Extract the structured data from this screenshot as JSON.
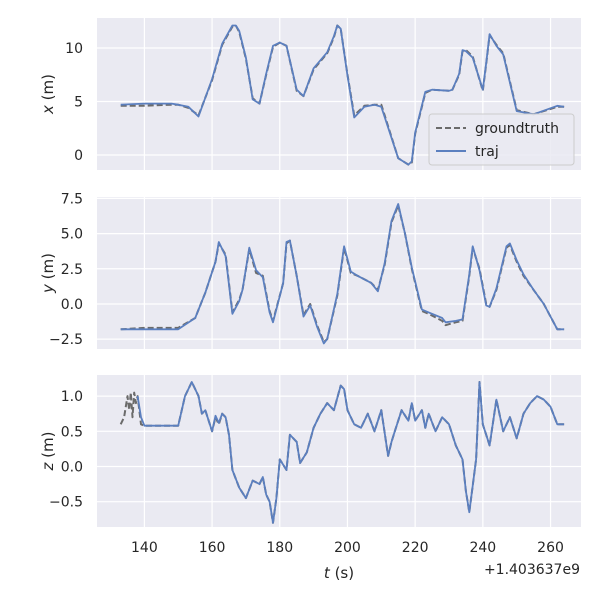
{
  "chart_data": {
    "type": "line",
    "x_offset_label": "+1.403637e9",
    "xlabel": "t (s)",
    "xlabel_var": "t",
    "xlabel_unit": " (s)",
    "xlim": [
      126,
      269
    ],
    "xticks": [
      140,
      160,
      180,
      200,
      220,
      240,
      260
    ],
    "legend": {
      "placement": "right, lower half of top panel",
      "entries": [
        "groundtruth",
        "traj"
      ]
    },
    "styles": {
      "background": "#eaeaf2",
      "grid": "#ffffff",
      "groundtruth_color": "#6b6b6b",
      "groundtruth_dash": "dashed",
      "traj_color": "#5b7fbf"
    },
    "panels": [
      {
        "ylabel": "x (m)",
        "ylabel_var": "x",
        "ylabel_unit": " (m)",
        "ylim": [
          -1.4,
          12.8
        ],
        "yticks": [
          0,
          5,
          10
        ],
        "ytick_labels": [
          "0",
          "5",
          "10"
        ],
        "series": [
          {
            "name": "groundtruth",
            "x": [
              133,
              140,
              148,
              150,
              153,
              156,
              160,
              163,
              166,
              167,
              168,
              170,
              172,
              174,
              176,
              178,
              180,
              182,
              185,
              187,
              190,
              194,
              196,
              197,
              198,
              200,
              202,
              205,
              208,
              209,
              210,
              215,
              218,
              219,
              220,
              223,
              225,
              230,
              231,
              233,
              234,
              235,
              237,
              240,
              241,
              242,
              244,
              246,
              250,
              255,
              262,
              264
            ],
            "y": [
              4.6,
              4.6,
              4.7,
              4.7,
              4.4,
              3.7,
              7.0,
              10.3,
              12.0,
              12.1,
              11.5,
              9.0,
              5.3,
              4.8,
              7.5,
              10.1,
              10.5,
              10.2,
              6.0,
              5.5,
              8.0,
              9.5,
              11.0,
              12.1,
              11.8,
              7.5,
              3.7,
              4.6,
              4.7,
              4.7,
              4.7,
              -0.3,
              -0.9,
              -0.7,
              2.0,
              5.8,
              6.1,
              6.0,
              6.1,
              7.5,
              9.7,
              9.8,
              9.2,
              6.0,
              8.5,
              11.2,
              10.3,
              9.5,
              4.2,
              3.8,
              4.5,
              4.5
            ]
          },
          {
            "name": "traj",
            "x": [
              133,
              140,
              148,
              150,
              153,
              156,
              160,
              163,
              166,
              167,
              168,
              170,
              172,
              174,
              176,
              178,
              180,
              182,
              185,
              187,
              190,
              194,
              196,
              197,
              198,
              200,
              202,
              205,
              208,
              209,
              210,
              215,
              218,
              219,
              220,
              223,
              225,
              230,
              231,
              233,
              234,
              235,
              237,
              240,
              241,
              242,
              244,
              246,
              250,
              255,
              262,
              264
            ],
            "y": [
              4.7,
              4.8,
              4.8,
              4.7,
              4.5,
              3.6,
              7.1,
              10.4,
              12.1,
              12.1,
              11.6,
              9.1,
              5.2,
              4.8,
              7.6,
              10.2,
              10.5,
              10.2,
              6.1,
              5.5,
              8.1,
              9.6,
              11.1,
              12.1,
              11.8,
              7.4,
              3.5,
              4.5,
              4.7,
              4.6,
              4.5,
              -0.3,
              -0.9,
              -0.6,
              2.1,
              5.9,
              6.1,
              6.0,
              6.1,
              7.6,
              9.8,
              9.7,
              9.1,
              6.1,
              8.6,
              11.3,
              10.2,
              9.4,
              4.1,
              3.8,
              4.6,
              4.5
            ]
          }
        ]
      },
      {
        "ylabel": "y (m)",
        "ylabel_var": "y",
        "ylabel_unit": " (m)",
        "ylim": [
          -3.2,
          7.6
        ],
        "yticks": [
          -2.5,
          0.0,
          2.5,
          5.0,
          7.5
        ],
        "ytick_labels": [
          "−2.5",
          "0.0",
          "2.5",
          "5.0",
          "7.5"
        ],
        "series": [
          {
            "name": "groundtruth",
            "x": [
              133,
              140,
              150,
              155,
              158,
              161,
              162,
              164,
              166,
              168,
              169,
              171,
              173,
              175,
              177,
              178,
              181,
              182,
              183,
              185,
              187,
              189,
              191,
              193,
              194,
              197,
              199,
              201,
              203,
              207,
              209,
              211,
              213,
              215,
              217,
              219,
              222,
              224,
              228,
              229,
              232,
              234,
              236,
              237,
              239,
              241,
              242,
              244,
              247,
              248,
              250,
              252,
              255,
              258,
              262,
              264
            ],
            "y": [
              -1.8,
              -1.7,
              -1.7,
              -1.0,
              0.8,
              3.0,
              4.3,
              3.5,
              -0.6,
              0.3,
              1.0,
              3.9,
              2.2,
              2.0,
              -0.5,
              -1.2,
              1.5,
              4.3,
              4.5,
              2.0,
              -0.8,
              0.0,
              -1.5,
              -2.7,
              -2.5,
              0.6,
              4.0,
              2.2,
              2.0,
              1.5,
              1.0,
              2.8,
              5.8,
              7.0,
              5.0,
              2.5,
              -0.5,
              -0.7,
              -1.2,
              -1.5,
              -1.3,
              -1.2,
              2.0,
              4.0,
              2.5,
              0.0,
              -0.2,
              1.0,
              4.0,
              4.2,
              3.0,
              2.0,
              1.0,
              0.0,
              -1.8,
              -1.8
            ]
          },
          {
            "name": "traj",
            "x": [
              133,
              140,
              150,
              155,
              158,
              161,
              162,
              164,
              166,
              168,
              169,
              171,
              173,
              175,
              177,
              178,
              181,
              182,
              183,
              185,
              187,
              189,
              191,
              193,
              194,
              197,
              199,
              201,
              203,
              207,
              209,
              211,
              213,
              215,
              217,
              219,
              222,
              224,
              228,
              229,
              232,
              234,
              236,
              237,
              239,
              241,
              242,
              244,
              247,
              248,
              250,
              252,
              255,
              258,
              262,
              264
            ],
            "y": [
              -1.8,
              -1.8,
              -1.8,
              -1.0,
              0.8,
              3.0,
              4.4,
              3.4,
              -0.7,
              0.2,
              1.0,
              4.0,
              2.4,
              1.9,
              -0.6,
              -1.3,
              1.5,
              4.4,
              4.5,
              2.0,
              -0.9,
              -0.1,
              -1.6,
              -2.8,
              -2.5,
              0.7,
              4.1,
              2.3,
              2.0,
              1.5,
              0.9,
              2.9,
              5.9,
              7.1,
              5.0,
              2.6,
              -0.4,
              -0.6,
              -1.0,
              -1.3,
              -1.2,
              -1.1,
              2.1,
              4.1,
              2.4,
              -0.1,
              -0.2,
              1.1,
              4.1,
              4.3,
              3.1,
              2.1,
              1.0,
              0.0,
              -1.8,
              -1.8
            ]
          }
        ]
      },
      {
        "ylabel": "z (m)",
        "ylabel_var": "z",
        "ylabel_unit": " (m)",
        "ylim": [
          -0.86,
          1.3
        ],
        "yticks": [
          -0.5,
          0.0,
          0.5,
          1.0
        ],
        "ytick_labels": [
          "−0.5",
          "0.0",
          "0.5",
          "1.0"
        ],
        "series": [
          {
            "name": "groundtruth",
            "x": [
              133,
              134,
              135,
              135.5,
              136,
              136.5,
              137,
              137.5,
              138,
              138.5,
              139,
              140,
              145,
              150,
              152,
              154,
              156,
              157,
              158,
              160,
              161,
              162,
              163,
              164,
              165,
              166,
              168,
              170,
              172,
              174,
              175,
              176,
              177,
              178,
              179,
              180,
              182,
              183,
              185,
              186,
              188,
              190,
              192,
              194,
              196,
              198,
              199,
              200,
              202,
              204,
              206,
              208,
              210,
              212,
              213,
              214,
              216,
              218,
              219,
              220,
              222,
              223,
              224,
              226,
              228,
              230,
              232,
              234,
              235,
              236,
              238,
              239,
              240,
              242,
              244,
              246,
              248,
              250,
              252,
              254,
              256,
              258,
              260,
              262,
              264
            ],
            "y": [
              0.6,
              0.7,
              1.0,
              0.8,
              1.05,
              0.7,
              1.05,
              0.9,
              1.0,
              0.8,
              0.6,
              0.58,
              0.58,
              0.58,
              1.0,
              1.2,
              1.0,
              0.75,
              0.8,
              0.5,
              0.7,
              0.6,
              0.75,
              0.7,
              0.45,
              -0.05,
              -0.3,
              -0.45,
              -0.2,
              -0.25,
              -0.15,
              -0.4,
              -0.5,
              -0.8,
              -0.45,
              0.1,
              -0.05,
              0.45,
              0.35,
              0.05,
              0.2,
              0.55,
              0.75,
              0.9,
              0.8,
              1.15,
              1.1,
              0.8,
              0.6,
              0.55,
              0.75,
              0.5,
              0.8,
              0.15,
              0.35,
              0.5,
              0.8,
              0.65,
              0.9,
              0.65,
              0.8,
              0.55,
              0.75,
              0.5,
              0.7,
              0.6,
              0.3,
              0.1,
              -0.35,
              -0.65,
              0.1,
              1.2,
              0.6,
              0.3,
              0.95,
              0.5,
              0.7,
              0.4,
              0.75,
              0.9,
              1.0,
              0.95,
              0.85,
              0.6,
              0.6
            ]
          },
          {
            "name": "traj",
            "x": [
              138,
              139,
              140,
              145,
              150,
              152,
              154,
              156,
              157,
              158,
              160,
              161,
              162,
              163,
              164,
              165,
              166,
              168,
              170,
              172,
              174,
              175,
              176,
              177,
              178,
              179,
              180,
              182,
              183,
              185,
              186,
              188,
              190,
              192,
              194,
              196,
              198,
              199,
              200,
              202,
              204,
              206,
              208,
              210,
              212,
              213,
              214,
              216,
              218,
              219,
              220,
              222,
              223,
              224,
              226,
              228,
              230,
              232,
              234,
              235,
              236,
              238,
              239,
              240,
              242,
              244,
              246,
              248,
              250,
              252,
              254,
              256,
              258,
              260,
              262,
              264
            ],
            "y": [
              1.0,
              0.7,
              0.58,
              0.58,
              0.58,
              1.0,
              1.2,
              1.0,
              0.75,
              0.8,
              0.5,
              0.72,
              0.62,
              0.75,
              0.7,
              0.45,
              -0.05,
              -0.3,
              -0.45,
              -0.2,
              -0.25,
              -0.15,
              -0.4,
              -0.5,
              -0.8,
              -0.45,
              0.1,
              -0.05,
              0.45,
              0.35,
              0.05,
              0.2,
              0.55,
              0.75,
              0.9,
              0.8,
              1.15,
              1.1,
              0.8,
              0.6,
              0.55,
              0.75,
              0.5,
              0.8,
              0.15,
              0.35,
              0.5,
              0.8,
              0.65,
              0.9,
              0.65,
              0.8,
              0.55,
              0.75,
              0.5,
              0.7,
              0.6,
              0.3,
              0.1,
              -0.35,
              -0.65,
              0.1,
              1.2,
              0.6,
              0.3,
              0.95,
              0.5,
              0.7,
              0.4,
              0.75,
              0.9,
              1.0,
              0.95,
              0.85,
              0.6,
              0.6
            ]
          }
        ]
      }
    ]
  }
}
